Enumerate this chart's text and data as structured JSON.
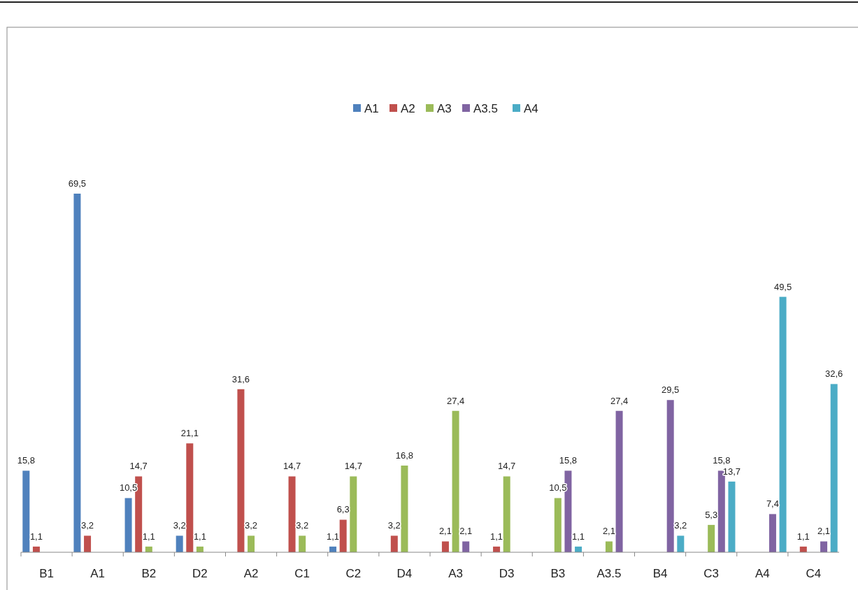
{
  "chart_data": {
    "type": "bar",
    "categories": [
      "B1",
      "A1",
      "B2",
      "D2",
      "A2",
      "C1",
      "C2",
      "D4",
      "A3",
      "D3",
      "B3",
      "A3.5",
      "B4",
      "C3",
      "A4",
      "C4"
    ],
    "legend": "top",
    "grid": false,
    "series": [
      {
        "name": "A1",
        "color": "#4f81bd",
        "values": [
          15.8,
          69.5,
          10.5,
          3.2,
          null,
          null,
          1.1,
          null,
          null,
          null,
          null,
          null,
          null,
          null,
          null,
          null
        ],
        "value_labels": [
          "15,8",
          "69,5",
          "10,5",
          "3,2",
          null,
          null,
          "1,1",
          null,
          null,
          null,
          null,
          null,
          null,
          null,
          null,
          null
        ]
      },
      {
        "name": "A2",
        "color": "#c0504d",
        "values": [
          1.1,
          3.2,
          14.7,
          21.1,
          31.6,
          14.7,
          6.3,
          3.2,
          2.1,
          1.1,
          null,
          null,
          null,
          null,
          null,
          1.1
        ],
        "value_labels": [
          "1,1",
          "3,2",
          "14,7",
          "21,1",
          "31,6",
          "14,7",
          "6,3",
          "3,2",
          "2,1",
          "1,1",
          null,
          null,
          null,
          null,
          null,
          "1,1"
        ]
      },
      {
        "name": "A3",
        "color": "#9bbb59",
        "values": [
          null,
          null,
          1.1,
          1.1,
          3.2,
          3.2,
          14.7,
          16.8,
          27.4,
          14.7,
          10.5,
          2.1,
          null,
          5.3,
          null,
          null
        ],
        "value_labels": [
          null,
          null,
          "1,1",
          "1,1",
          "3,2",
          "3,2",
          "14,7",
          "16,8",
          "27,4",
          "14,7",
          "10,5",
          "2,1",
          null,
          "5,3",
          null,
          null
        ]
      },
      {
        "name": "A3.5",
        "color": "#8064a2",
        "values": [
          null,
          null,
          null,
          null,
          null,
          null,
          null,
          null,
          2.1,
          null,
          15.8,
          27.4,
          29.5,
          15.8,
          7.4,
          2.1
        ],
        "value_labels": [
          null,
          null,
          null,
          null,
          null,
          null,
          null,
          null,
          "2,1",
          null,
          "15,8",
          "27,4",
          "29,5",
          "15,8",
          "7,4",
          "2,1"
        ]
      },
      {
        "name": "A4",
        "color": "#4bacc6",
        "values": [
          null,
          null,
          null,
          null,
          null,
          null,
          null,
          null,
          null,
          null,
          1.1,
          null,
          3.2,
          13.7,
          49.5,
          32.6
        ],
        "value_labels": [
          null,
          null,
          null,
          null,
          null,
          null,
          null,
          null,
          null,
          null,
          "1,1",
          null,
          "3,2",
          "13,7",
          "49,5",
          "32,6"
        ]
      }
    ]
  }
}
